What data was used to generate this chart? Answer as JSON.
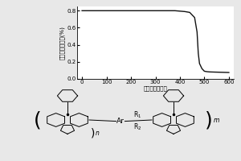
{
  "tga_x": [
    0,
    100,
    200,
    300,
    380,
    420,
    440,
    460,
    470,
    475,
    480,
    490,
    500,
    510,
    520,
    540,
    600
  ],
  "tga_y": [
    0.8,
    0.8,
    0.8,
    0.8,
    0.8,
    0.79,
    0.78,
    0.72,
    0.55,
    0.3,
    0.18,
    0.12,
    0.09,
    0.085,
    0.082,
    0.08,
    0.075
  ],
  "ylabel": "质量百分数含量(%)",
  "xlabel": "温度（摄氏度）",
  "xlim": [
    -20,
    620
  ],
  "ylim": [
    0.0,
    0.85
  ],
  "yticks": [
    0.0,
    0.2,
    0.4,
    0.6,
    0.8
  ],
  "xticks": [
    0,
    100,
    200,
    300,
    400,
    500,
    600
  ],
  "bg_color": "#e8e8e8",
  "line_color": "#111111",
  "plot_bg": "#ffffff",
  "r1_label": "R$_1$",
  "r2_label": "R$_2$",
  "ar_label": "Ar",
  "n_label": "n",
  "m_label": "m"
}
